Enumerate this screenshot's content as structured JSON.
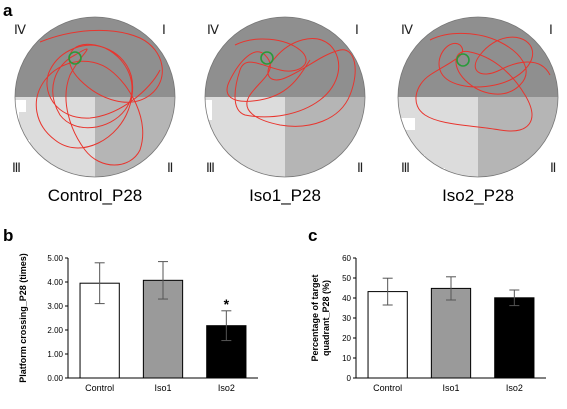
{
  "figure": {
    "panel_a": {
      "label": "a",
      "quadrant_labels": [
        "Ⅳ",
        "Ⅰ",
        "Ⅲ",
        "Ⅱ"
      ],
      "pools": [
        {
          "caption": "Control_P28"
        },
        {
          "caption": "Iso1_P28"
        },
        {
          "caption": "Iso2_P28"
        }
      ],
      "colors": {
        "target_quadrant": "#8f8f8f",
        "other_quadrant": "#b5b5b5",
        "light_quadrant": "#dcdcdc",
        "track": "#e8352e",
        "platform": "#2a9a3a"
      }
    },
    "panel_b": {
      "label": "b"
    },
    "panel_c": {
      "label": "c"
    }
  },
  "chart_data": [
    {
      "type": "bar",
      "panel": "b",
      "ylabel": "Platform crossing_P28 (times)",
      "categories": [
        "Control",
        "Iso1",
        "Iso2"
      ],
      "values": [
        3.95,
        4.07,
        2.18
      ],
      "errors": [
        0.85,
        0.78,
        0.62
      ],
      "bar_colors": [
        "#ffffff",
        "#9a9a9a",
        "#000000"
      ],
      "ylim": [
        0,
        5
      ],
      "yticks": [
        "0.00",
        "1.00",
        "2.00",
        "3.00",
        "4.00",
        "5.00"
      ],
      "ytick_values": [
        0,
        1,
        2,
        3,
        4,
        5
      ],
      "annotations": [
        {
          "category": "Iso2",
          "text": "*"
        }
      ]
    },
    {
      "type": "bar",
      "panel": "c",
      "ylabel_lines": [
        "Percentage of target",
        "quadrant_P28 (%)"
      ],
      "categories": [
        "Control",
        "Iso1",
        "Iso2"
      ],
      "values": [
        43.2,
        44.8,
        40.1
      ],
      "errors": [
        6.7,
        5.8,
        3.9
      ],
      "bar_colors": [
        "#ffffff",
        "#9a9a9a",
        "#000000"
      ],
      "ylim": [
        0,
        60
      ],
      "yticks": [
        "0",
        "10",
        "20",
        "30",
        "40",
        "50",
        "60"
      ],
      "ytick_values": [
        0,
        10,
        20,
        30,
        40,
        50,
        60
      ]
    }
  ]
}
